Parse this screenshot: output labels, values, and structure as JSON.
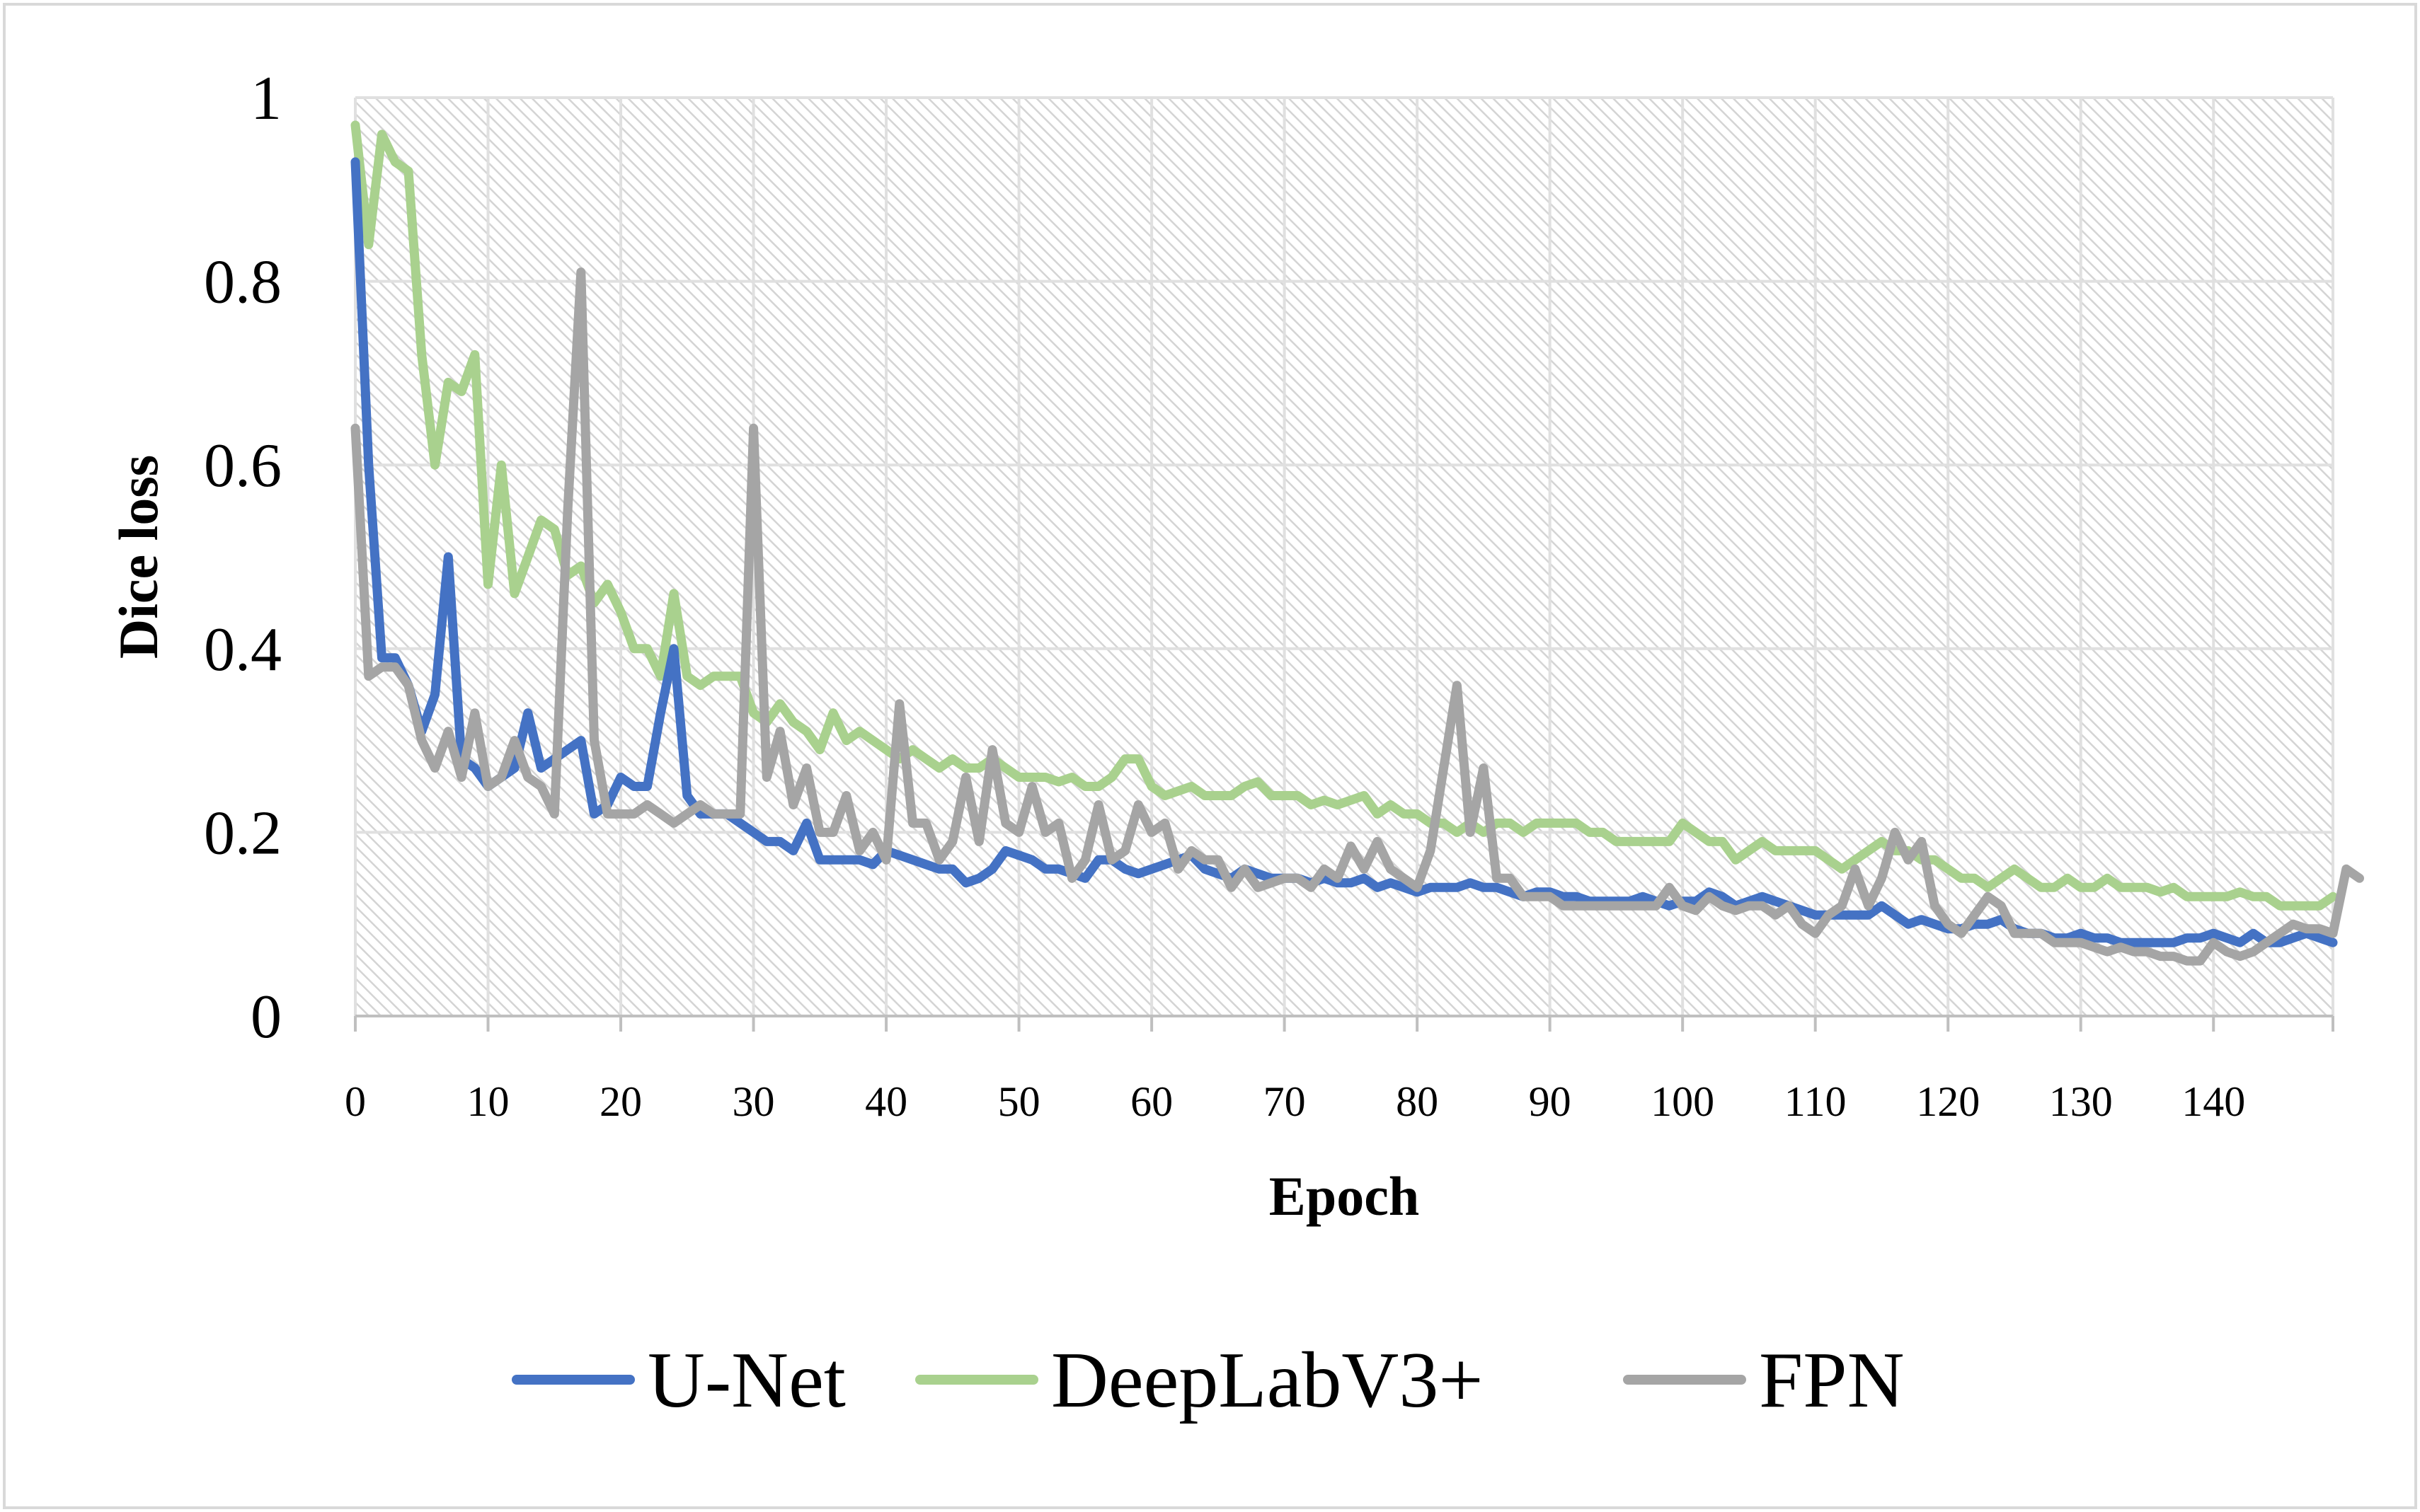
{
  "chart_data": {
    "type": "line",
    "title": "",
    "xlabel": "Epoch",
    "ylabel": "Dice loss",
    "xlim": [
      0,
      149
    ],
    "ylim": [
      0,
      1
    ],
    "x_ticks": [
      "0",
      "10",
      "20",
      "30",
      "40",
      "50",
      "60",
      "70",
      "80",
      "90",
      "100",
      "110",
      "120",
      "130",
      "140"
    ],
    "y_ticks": [
      "0",
      "0.2",
      "0.4",
      "0.6",
      "0.8",
      "1"
    ],
    "grid": true,
    "legend_position": "bottom",
    "series": [
      {
        "name": "U-Net",
        "color": "#4472c4",
        "values": [
          0.93,
          0.6,
          0.39,
          0.39,
          0.36,
          0.31,
          0.35,
          0.5,
          0.28,
          0.27,
          0.25,
          0.26,
          0.27,
          0.33,
          0.27,
          0.28,
          0.29,
          0.3,
          0.22,
          0.23,
          0.26,
          0.25,
          0.25,
          0.33,
          0.4,
          0.24,
          0.22,
          0.22,
          0.22,
          0.21,
          0.2,
          0.19,
          0.19,
          0.18,
          0.21,
          0.17,
          0.17,
          0.17,
          0.17,
          0.165,
          0.18,
          0.175,
          0.17,
          0.165,
          0.16,
          0.16,
          0.145,
          0.15,
          0.16,
          0.18,
          0.175,
          0.17,
          0.16,
          0.16,
          0.155,
          0.15,
          0.17,
          0.17,
          0.16,
          0.155,
          0.16,
          0.165,
          0.17,
          0.175,
          0.16,
          0.155,
          0.15,
          0.16,
          0.155,
          0.15,
          0.15,
          0.15,
          0.145,
          0.15,
          0.145,
          0.145,
          0.15,
          0.14,
          0.145,
          0.14,
          0.135,
          0.14,
          0.14,
          0.14,
          0.145,
          0.14,
          0.14,
          0.135,
          0.13,
          0.135,
          0.135,
          0.13,
          0.13,
          0.125,
          0.125,
          0.125,
          0.125,
          0.13,
          0.125,
          0.12,
          0.125,
          0.125,
          0.135,
          0.13,
          0.12,
          0.125,
          0.13,
          0.125,
          0.12,
          0.115,
          0.11,
          0.11,
          0.11,
          0.11,
          0.11,
          0.12,
          0.11,
          0.1,
          0.105,
          0.1,
          0.095,
          0.095,
          0.1,
          0.1,
          0.105,
          0.095,
          0.09,
          0.09,
          0.085,
          0.085,
          0.09,
          0.085,
          0.085,
          0.08,
          0.08,
          0.08,
          0.08,
          0.08,
          0.085,
          0.085,
          0.09,
          0.085,
          0.08,
          0.09,
          0.08,
          0.08,
          0.085,
          0.09,
          0.085,
          0.08
        ]
      },
      {
        "name": "DeepLabV3+",
        "color": "#a9d18e",
        "values": [
          0.97,
          0.84,
          0.96,
          0.93,
          0.92,
          0.72,
          0.6,
          0.69,
          0.68,
          0.72,
          0.47,
          0.6,
          0.46,
          0.5,
          0.54,
          0.53,
          0.48,
          0.49,
          0.45,
          0.47,
          0.44,
          0.4,
          0.4,
          0.37,
          0.46,
          0.37,
          0.36,
          0.37,
          0.37,
          0.37,
          0.33,
          0.32,
          0.34,
          0.32,
          0.31,
          0.29,
          0.33,
          0.3,
          0.31,
          0.3,
          0.29,
          0.28,
          0.29,
          0.28,
          0.27,
          0.28,
          0.27,
          0.27,
          0.28,
          0.27,
          0.26,
          0.26,
          0.26,
          0.255,
          0.26,
          0.25,
          0.25,
          0.26,
          0.28,
          0.28,
          0.25,
          0.24,
          0.245,
          0.25,
          0.24,
          0.24,
          0.24,
          0.25,
          0.255,
          0.24,
          0.24,
          0.24,
          0.23,
          0.235,
          0.23,
          0.235,
          0.24,
          0.22,
          0.23,
          0.22,
          0.22,
          0.21,
          0.21,
          0.2,
          0.21,
          0.2,
          0.21,
          0.21,
          0.2,
          0.21,
          0.21,
          0.21,
          0.21,
          0.2,
          0.2,
          0.19,
          0.19,
          0.19,
          0.19,
          0.19,
          0.21,
          0.2,
          0.19,
          0.19,
          0.17,
          0.18,
          0.19,
          0.18,
          0.18,
          0.18,
          0.18,
          0.17,
          0.16,
          0.17,
          0.18,
          0.19,
          0.18,
          0.18,
          0.17,
          0.17,
          0.16,
          0.15,
          0.15,
          0.14,
          0.15,
          0.16,
          0.15,
          0.14,
          0.14,
          0.15,
          0.14,
          0.14,
          0.15,
          0.14,
          0.14,
          0.14,
          0.135,
          0.14,
          0.13,
          0.13,
          0.13,
          0.13,
          0.135,
          0.13,
          0.13,
          0.12,
          0.12,
          0.12,
          0.12,
          0.13
        ]
      },
      {
        "name": "FPN",
        "color": "#a5a5a5",
        "values": [
          0.64,
          0.37,
          0.38,
          0.38,
          0.36,
          0.3,
          0.27,
          0.31,
          0.26,
          0.33,
          0.25,
          0.26,
          0.3,
          0.26,
          0.25,
          0.22,
          0.55,
          0.81,
          0.3,
          0.22,
          0.22,
          0.22,
          0.23,
          0.22,
          0.21,
          0.22,
          0.23,
          0.22,
          0.22,
          0.22,
          0.64,
          0.26,
          0.31,
          0.23,
          0.27,
          0.2,
          0.2,
          0.24,
          0.18,
          0.2,
          0.17,
          0.34,
          0.21,
          0.21,
          0.17,
          0.19,
          0.26,
          0.19,
          0.29,
          0.21,
          0.2,
          0.25,
          0.2,
          0.21,
          0.15,
          0.17,
          0.23,
          0.17,
          0.18,
          0.23,
          0.2,
          0.21,
          0.16,
          0.18,
          0.17,
          0.17,
          0.14,
          0.16,
          0.14,
          0.145,
          0.15,
          0.15,
          0.14,
          0.16,
          0.15,
          0.185,
          0.16,
          0.19,
          0.16,
          0.15,
          0.14,
          0.18,
          0.27,
          0.36,
          0.2,
          0.27,
          0.15,
          0.15,
          0.13,
          0.13,
          0.13,
          0.12,
          0.12,
          0.12,
          0.12,
          0.12,
          0.12,
          0.12,
          0.12,
          0.14,
          0.12,
          0.115,
          0.13,
          0.12,
          0.115,
          0.12,
          0.12,
          0.11,
          0.12,
          0.1,
          0.09,
          0.11,
          0.12,
          0.16,
          0.12,
          0.15,
          0.2,
          0.17,
          0.19,
          0.12,
          0.1,
          0.09,
          0.11,
          0.13,
          0.12,
          0.09,
          0.09,
          0.09,
          0.08,
          0.08,
          0.08,
          0.075,
          0.07,
          0.075,
          0.07,
          0.07,
          0.065,
          0.065,
          0.06,
          0.06,
          0.08,
          0.07,
          0.065,
          0.07,
          0.08,
          0.09,
          0.1,
          0.095,
          0.095,
          0.09,
          0.16,
          0.15
        ]
      }
    ]
  }
}
